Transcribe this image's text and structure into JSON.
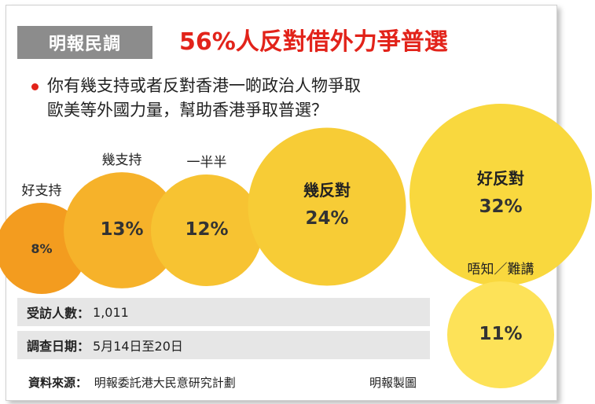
{
  "header": {
    "tag": "明報民調",
    "headline": "56%人反對借外力爭普選"
  },
  "question": {
    "line1": "你有幾支持或者反對香港一啲政治人物爭取",
    "line2": "歐美等外國力量，幫助香港爭取普選？"
  },
  "chart_data": {
    "type": "bubble",
    "categories": [
      "好支持",
      "幾支持",
      "一半半",
      "幾反對",
      "好反對",
      "唔知／難講"
    ],
    "values": [
      8,
      13,
      12,
      24,
      32,
      11
    ],
    "value_labels": [
      "8%",
      "13%",
      "12%",
      "24%",
      "32%",
      "11%"
    ],
    "colors": [
      "#f39c1f",
      "#f6b22a",
      "#f7c332",
      "#f7cc36",
      "#f9d83e",
      "#fde258"
    ],
    "title": "56%人反對借外力爭普選"
  },
  "info": {
    "respondents_label": "受訪人數：",
    "respondents_value": "1,011",
    "period_label": "調查日期：",
    "period_value": "5月14日至20日"
  },
  "footer": {
    "source_label": "資料來源：",
    "source_value": "明報委託港大民意研究計劃",
    "credit": "明報製圖"
  }
}
